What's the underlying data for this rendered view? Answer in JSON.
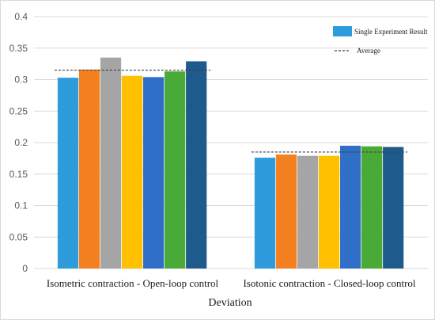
{
  "chart_data": {
    "type": "bar",
    "title": "",
    "xlabel": "Deviation",
    "ylabel": "",
    "ylim": [
      0,
      0.4
    ],
    "yticks": [
      "0",
      "0.05",
      "0.1",
      "0.15",
      "0.2",
      "0.25",
      "0.3",
      "0.35",
      "0.4"
    ],
    "grid": true,
    "legend_position": "top-right",
    "legend": {
      "bar_label": "Single Experiment Result",
      "line_label": "Average"
    },
    "categories": [
      "Isometric contraction - Open-loop control",
      "Isotonic contraction - Closed-loop control"
    ],
    "groups": [
      {
        "values": [
          0.303,
          0.316,
          0.335,
          0.306,
          0.304,
          0.313,
          0.329
        ],
        "average": 0.315
      },
      {
        "values": [
          0.176,
          0.181,
          0.179,
          0.179,
          0.195,
          0.194,
          0.193
        ],
        "average": 0.185
      }
    ],
    "bar_colors": [
      "#2e9cdc",
      "#f5801f",
      "#a5a5a5",
      "#ffc000",
      "#2f6fc8",
      "#4aaa38",
      "#1f5a8c"
    ],
    "legend_swatch_color": "#2e9cdc",
    "average_line_color": "#404040"
  }
}
